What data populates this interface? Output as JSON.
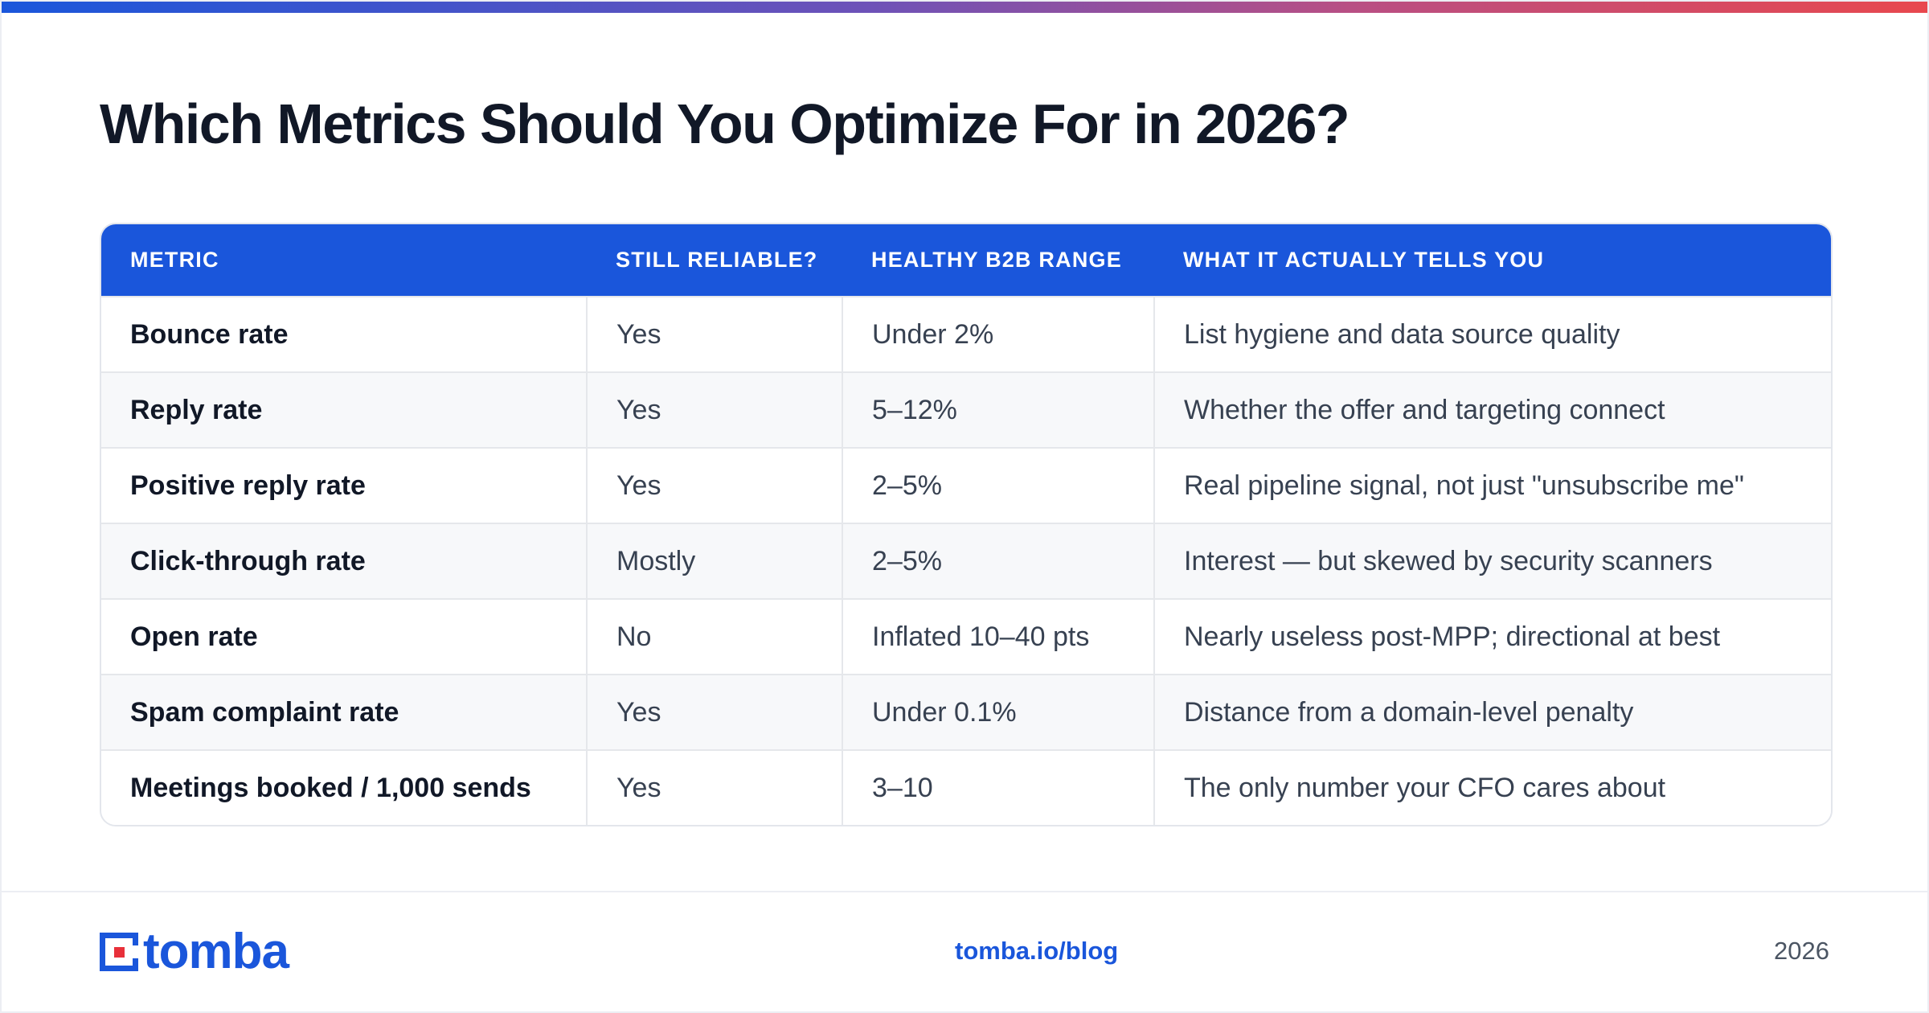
{
  "title": "Which Metrics Should You Optimize For in 2026?",
  "colors": {
    "accent": "#1a56db",
    "logo_dot": "#e8303a",
    "gradient": [
      "#1a56db",
      "#6d52b8",
      "#b84f84",
      "#e8484e"
    ]
  },
  "table": {
    "headers": [
      "METRIC",
      "STILL RELIABLE?",
      "HEALTHY B2B RANGE",
      "WHAT IT ACTUALLY TELLS YOU"
    ],
    "rows": [
      [
        "Bounce rate",
        "Yes",
        "Under 2%",
        "List hygiene and data source quality"
      ],
      [
        "Reply rate",
        "Yes",
        "5–12%",
        "Whether the offer and targeting connect"
      ],
      [
        "Positive reply rate",
        "Yes",
        "2–5%",
        "Real pipeline signal, not just \"unsubscribe me\""
      ],
      [
        "Click-through rate",
        "Mostly",
        "2–5%",
        "Interest — but skewed by security scanners"
      ],
      [
        "Open rate",
        "No",
        "Inflated 10–40 pts",
        "Nearly useless post-MPP; directional at best"
      ],
      [
        "Spam complaint rate",
        "Yes",
        "Under 0.1%",
        "Distance from a domain-level penalty"
      ],
      [
        "Meetings booked / 1,000 sends",
        "Yes",
        "3–10",
        "The only number your CFO cares about"
      ]
    ]
  },
  "footer": {
    "logo_text": "tomba",
    "logo_icon": "tomba-logo-icon",
    "link": "tomba.io/blog",
    "year": "2026"
  }
}
